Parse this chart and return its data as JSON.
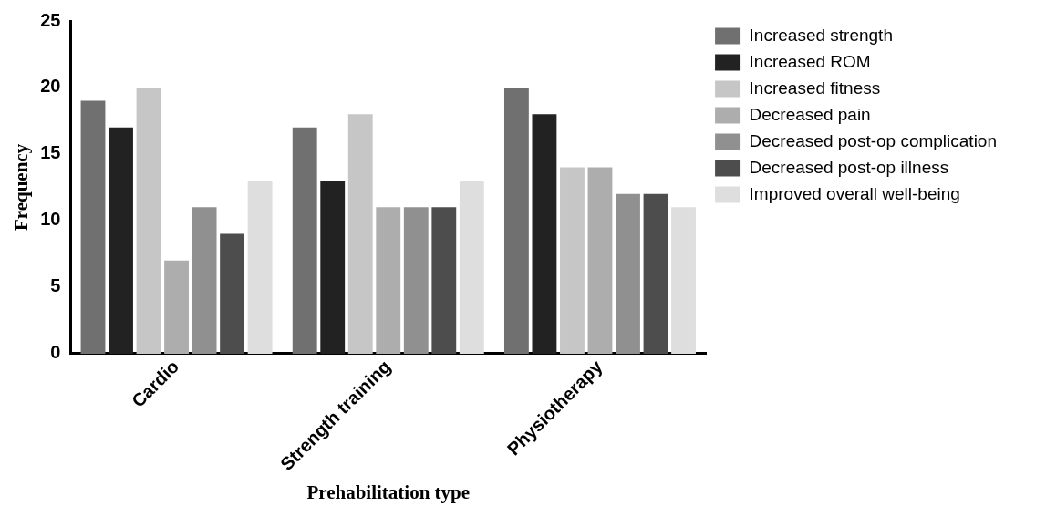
{
  "chart_data": {
    "type": "bar",
    "xlabel": "Prehabilitation type",
    "ylabel": "Frequency",
    "categories": [
      "Cardio",
      "Strength training",
      "Physiotherapy"
    ],
    "series": [
      {
        "name": "Increased strength",
        "color": "#707070",
        "values": [
          19,
          17,
          20
        ]
      },
      {
        "name": "Increased ROM",
        "color": "#222222",
        "values": [
          17,
          13,
          18
        ]
      },
      {
        "name": "Increased fitness",
        "color": "#c6c6c6",
        "values": [
          20,
          18,
          14
        ]
      },
      {
        "name": "Decreased pain",
        "color": "#adadad",
        "values": [
          7,
          11,
          14
        ]
      },
      {
        "name": "Decreased post-op complication",
        "color": "#909090",
        "values": [
          11,
          11,
          12
        ]
      },
      {
        "name": "Decreased post-op illness",
        "color": "#4d4d4d",
        "values": [
          9,
          11,
          12
        ]
      },
      {
        "name": "Improved overall well-being",
        "color": "#dedede",
        "values": [
          13,
          13,
          11
        ]
      }
    ],
    "ylim": [
      0,
      25
    ],
    "yticks": [
      0,
      5,
      10,
      15,
      20,
      25
    ],
    "grid": false,
    "legend": "right"
  }
}
